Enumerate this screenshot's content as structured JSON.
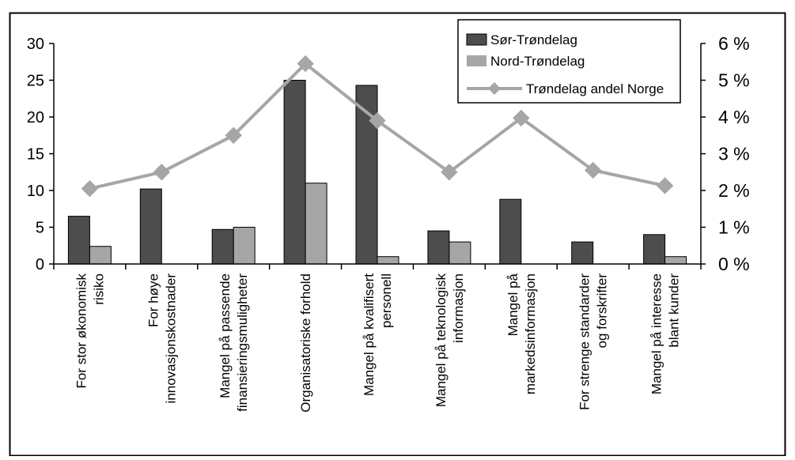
{
  "chart_data": {
    "type": "bar",
    "title": "",
    "xlabel": "",
    "ylabel": "",
    "categories": [
      [
        "For stor økonomisk",
        "risiko"
      ],
      [
        "For høye",
        "innovasjonskostnader"
      ],
      [
        "Mangel på passende",
        "finansieringsmuligheter"
      ],
      [
        "Organisatoriske forhold"
      ],
      [
        "Mangel på kvalifisert",
        "personell"
      ],
      [
        "Mangel på teknologisk",
        "informasjon"
      ],
      [
        "Mangel på",
        "markedsinformasjon"
      ],
      [
        "For strenge standarder",
        "og forskrifter"
      ],
      [
        "Mangel på interesse",
        "blant kunder"
      ]
    ],
    "series": [
      {
        "name": "Sør-Trøndelag",
        "kind": "bar",
        "axis": "left",
        "color": "#4d4d4d",
        "values": [
          6.5,
          10.2,
          4.7,
          25.0,
          24.3,
          4.5,
          8.8,
          3.0,
          4.0
        ]
      },
      {
        "name": "Nord-Trøndelag",
        "kind": "bar",
        "axis": "left",
        "color": "#a6a6a6",
        "values": [
          2.4,
          0,
          5.0,
          11.0,
          1.0,
          3.0,
          0,
          0,
          1.0
        ]
      },
      {
        "name": "Trøndelag andel Norge",
        "kind": "line",
        "axis": "right",
        "color": "#a6a6a6",
        "values": [
          2.05,
          2.5,
          3.5,
          5.45,
          3.9,
          2.5,
          3.97,
          2.55,
          2.13
        ]
      }
    ],
    "ylim": [
      0,
      30
    ],
    "yticks": [
      "0",
      "5",
      "10",
      "15",
      "20",
      "25",
      "30"
    ],
    "y2lim": [
      0,
      6
    ],
    "y2ticks": [
      "0 %",
      "1 %",
      "2 %",
      "3 %",
      "4 %",
      "5 %",
      "6 %"
    ],
    "grid": false,
    "legend_position": "top-right"
  }
}
